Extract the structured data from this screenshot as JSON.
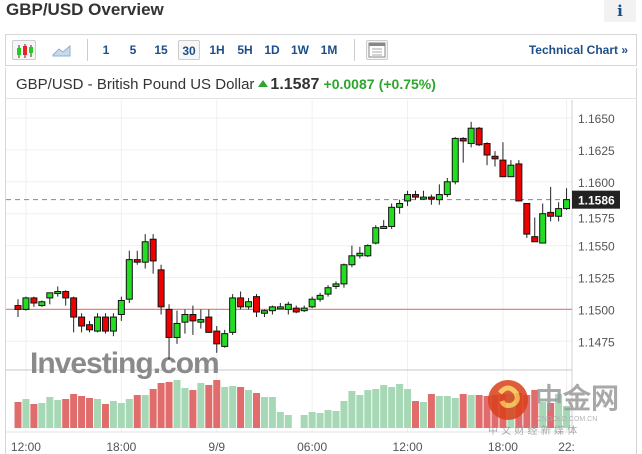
{
  "header": {
    "title": "GBP/USD Overview",
    "info_icon": "info-icon"
  },
  "toolbar": {
    "chart_types": [
      "candlestick-icon",
      "area-chart-icon"
    ],
    "intervals": [
      "1",
      "5",
      "15",
      "30",
      "1H",
      "5H",
      "1D",
      "1W",
      "1M"
    ],
    "active_interval": "30",
    "layout_icon": "layout-icon",
    "technical_chart": "Technical Chart »"
  },
  "quote": {
    "name": "GBP/USD - British Pound US Dollar",
    "last": "1.1587",
    "change": "+0.0087",
    "change_pct": "(+0.75%)",
    "direction": "up"
  },
  "colors": {
    "up": "#22dd22",
    "down": "#ee0000",
    "vol_up": "#a6d8b6",
    "vol_down": "#e06c6c",
    "ref_line": "#f08080",
    "accent": "#1d4e89"
  },
  "chart_data": {
    "type": "candlestick",
    "y_ticks": [
      "1.1650",
      "1.1625",
      "1.1600",
      "1.1575",
      "1.1550",
      "1.1525",
      "1.1500",
      "1.1475"
    ],
    "ylim": [
      1.1455,
      1.166
    ],
    "x_labels": [
      {
        "i": 1,
        "label": "12:00"
      },
      {
        "i": 13,
        "label": "18:00"
      },
      {
        "i": 25,
        "label": "9/9"
      },
      {
        "i": 37,
        "label": "06:00"
      },
      {
        "i": 49,
        "label": "12:00"
      },
      {
        "i": 61,
        "label": "18:00"
      },
      {
        "i": 69,
        "label": "22:"
      }
    ],
    "current_price": "1.1586",
    "reference_price": 1.15,
    "ohlc": [
      [
        1.1503,
        1.1508,
        1.1494,
        1.15
      ],
      [
        1.15,
        1.151,
        1.1499,
        1.1509
      ],
      [
        1.1509,
        1.151,
        1.1502,
        1.1505
      ],
      [
        1.1503,
        1.1507,
        1.1502,
        1.1506
      ],
      [
        1.1509,
        1.1513,
        1.1504,
        1.1513
      ],
      [
        1.1513,
        1.1518,
        1.151,
        1.1514
      ],
      [
        1.1514,
        1.1515,
        1.1503,
        1.1509
      ],
      [
        1.1509,
        1.151,
        1.1482,
        1.1494
      ],
      [
        1.1494,
        1.1497,
        1.1482,
        1.1487
      ],
      [
        1.1488,
        1.1491,
        1.1482,
        1.1484
      ],
      [
        1.1483,
        1.1497,
        1.1482,
        1.1494
      ],
      [
        1.1494,
        1.1497,
        1.1481,
        1.1483
      ],
      [
        1.1483,
        1.1497,
        1.1479,
        1.1494
      ],
      [
        1.1496,
        1.151,
        1.1491,
        1.1507
      ],
      [
        1.1508,
        1.1546,
        1.1505,
        1.1539
      ],
      [
        1.1539,
        1.1546,
        1.1535,
        1.1537
      ],
      [
        1.1537,
        1.1559,
        1.1532,
        1.1553
      ],
      [
        1.1555,
        1.1559,
        1.1528,
        1.1538
      ],
      [
        1.1531,
        1.1535,
        1.1496,
        1.1502
      ],
      [
        1.15,
        1.1504,
        1.1461,
        1.1478
      ],
      [
        1.1478,
        1.1499,
        1.1473,
        1.1489
      ],
      [
        1.149,
        1.15,
        1.1481,
        1.1496
      ],
      [
        1.1496,
        1.1503,
        1.148,
        1.1491
      ],
      [
        1.149,
        1.15,
        1.1485,
        1.1492
      ],
      [
        1.1494,
        1.15,
        1.1482,
        1.1482
      ],
      [
        1.1483,
        1.1487,
        1.1466,
        1.1473
      ],
      [
        1.1471,
        1.1484,
        1.147,
        1.1481
      ],
      [
        1.1482,
        1.1512,
        1.148,
        1.1509
      ],
      [
        1.1509,
        1.1514,
        1.15,
        1.1502
      ],
      [
        1.1502,
        1.1509,
        1.15,
        1.1506
      ],
      [
        1.151,
        1.1512,
        1.1494,
        1.1498
      ],
      [
        1.1497,
        1.15,
        1.1494,
        1.1499
      ],
      [
        1.1499,
        1.1503,
        1.1496,
        1.1502
      ],
      [
        1.1502,
        1.1505,
        1.1501,
        1.1502
      ],
      [
        1.15,
        1.1506,
        1.1496,
        1.1504
      ],
      [
        1.1501,
        1.1503,
        1.1497,
        1.1498
      ],
      [
        1.1499,
        1.1503,
        1.1498,
        1.1501
      ],
      [
        1.1502,
        1.151,
        1.1501,
        1.1508
      ],
      [
        1.1508,
        1.1513,
        1.1506,
        1.1511
      ],
      [
        1.1512,
        1.1519,
        1.151,
        1.1517
      ],
      [
        1.1518,
        1.1522,
        1.1516,
        1.152
      ],
      [
        1.152,
        1.1536,
        1.1517,
        1.1535
      ],
      [
        1.1535,
        1.155,
        1.1533,
        1.1542
      ],
      [
        1.1542,
        1.1549,
        1.154,
        1.1544
      ],
      [
        1.1542,
        1.1551,
        1.1541,
        1.155
      ],
      [
        1.1552,
        1.1566,
        1.1551,
        1.1564
      ],
      [
        1.1564,
        1.157,
        1.1563,
        1.1565
      ],
      [
        1.1565,
        1.1583,
        1.1563,
        1.158
      ],
      [
        1.158,
        1.1586,
        1.1575,
        1.1583
      ],
      [
        1.1585,
        1.1593,
        1.1581,
        1.159
      ],
      [
        1.159,
        1.1593,
        1.1586,
        1.1588
      ],
      [
        1.1587,
        1.1593,
        1.1586,
        1.1588
      ],
      [
        1.1588,
        1.159,
        1.1582,
        1.1587
      ],
      [
        1.1586,
        1.1598,
        1.1582,
        1.159
      ],
      [
        1.159,
        1.1603,
        1.1588,
        1.16
      ],
      [
        1.16,
        1.1635,
        1.1598,
        1.1634
      ],
      [
        1.1634,
        1.1635,
        1.1615,
        1.1632
      ],
      [
        1.163,
        1.1647,
        1.1627,
        1.1642
      ],
      [
        1.1642,
        1.1643,
        1.1628,
        1.1629
      ],
      [
        1.163,
        1.1631,
        1.1613,
        1.1621
      ],
      [
        1.162,
        1.1624,
        1.1612,
        1.1618
      ],
      [
        1.1617,
        1.1631,
        1.1604,
        1.1604
      ],
      [
        1.1604,
        1.1617,
        1.1604,
        1.1613
      ],
      [
        1.1614,
        1.1617,
        1.1585,
        1.1585
      ],
      [
        1.1583,
        1.1583,
        1.1556,
        1.1559
      ],
      [
        1.1557,
        1.1572,
        1.1553,
        1.1553
      ],
      [
        1.1552,
        1.1583,
        1.1552,
        1.1575
      ],
      [
        1.1576,
        1.1596,
        1.1569,
        1.1573
      ],
      [
        1.1573,
        1.1584,
        1.1569,
        1.1579
      ],
      [
        1.1579,
        1.1595,
        1.1578,
        1.1586
      ]
    ],
    "volume": [
      26,
      29,
      24,
      25,
      31,
      28,
      29,
      34,
      32,
      30,
      29,
      24,
      27,
      25,
      29,
      33,
      33,
      39,
      45,
      46,
      48,
      40,
      38,
      45,
      43,
      48,
      41,
      42,
      41,
      38,
      35,
      31,
      31,
      16,
      13,
      0,
      13,
      16,
      15,
      18,
      17,
      27,
      37,
      33,
      38,
      39,
      43,
      41,
      44,
      39,
      27,
      26,
      34,
      32,
      32,
      30,
      34,
      33,
      33,
      32,
      33,
      34,
      34,
      35,
      33,
      38,
      26,
      25,
      34,
      22
    ]
  },
  "watermarks": {
    "investing": "Investing.com",
    "cngold": "中金网",
    "cngold_url": "CNGOLD.COM.CN",
    "cngold_sub": "中 文 财 经 新 媒 体"
  }
}
